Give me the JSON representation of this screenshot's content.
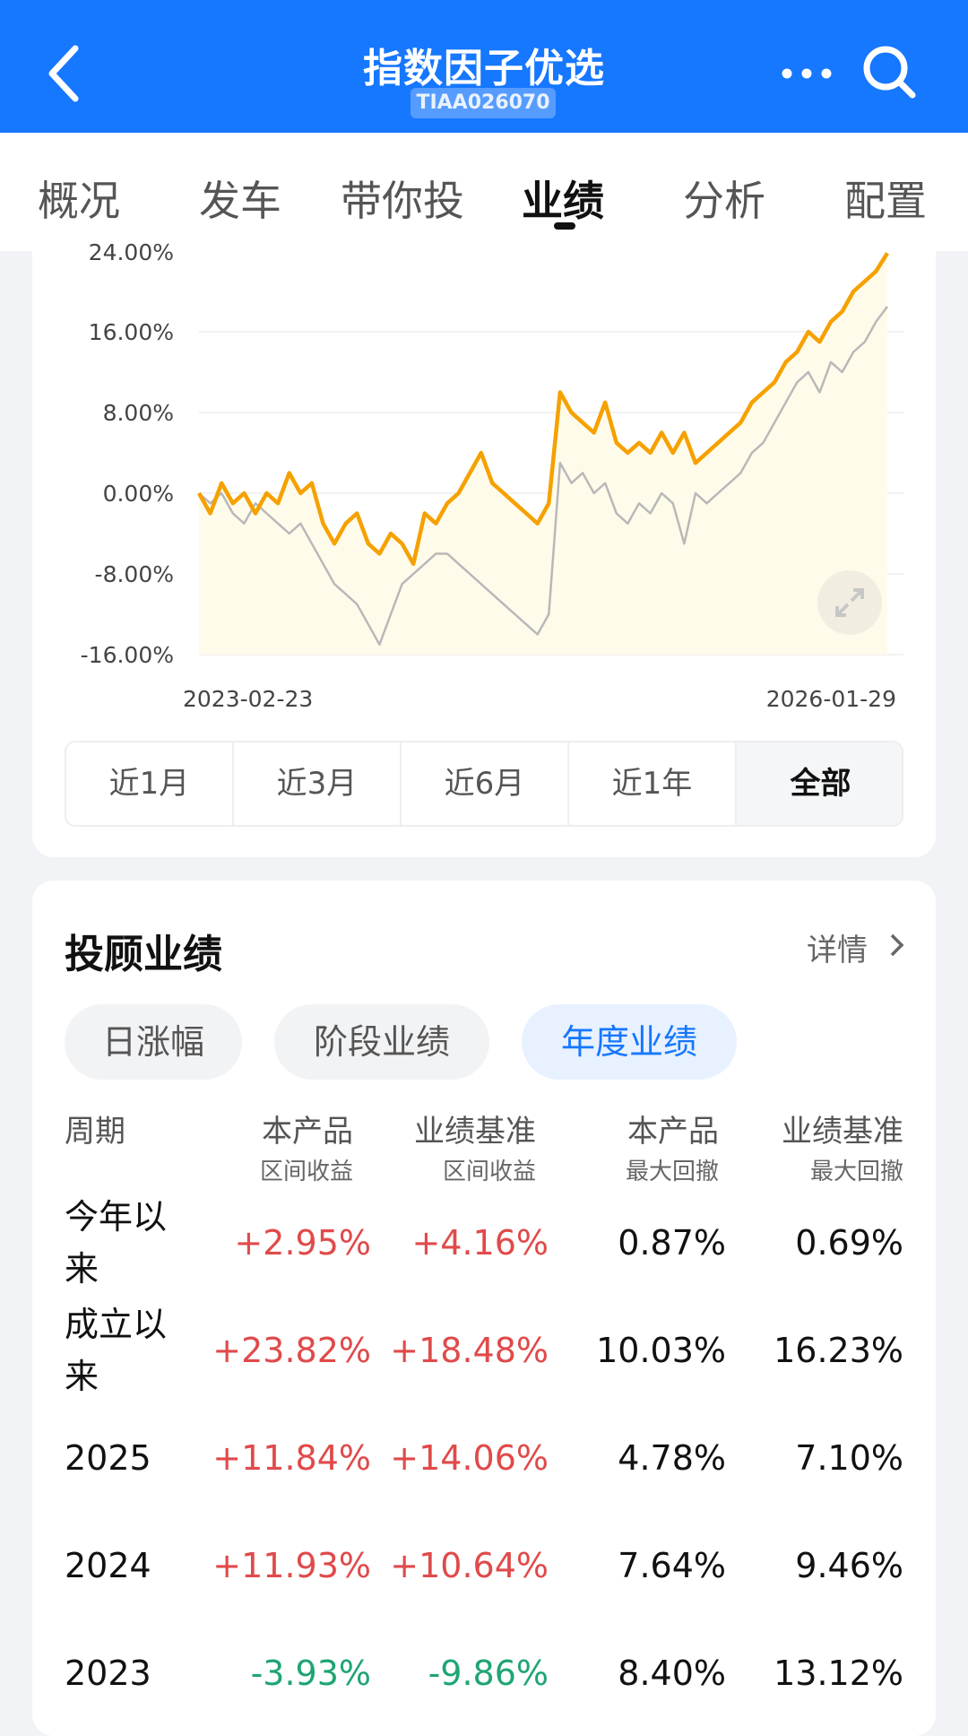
{
  "header": {
    "title": "指数因子优选",
    "code": "TIAA026070"
  },
  "tabs": [
    "概况",
    "发车",
    "带你投",
    "业绩",
    "分析",
    "配置"
  ],
  "active_tab": "业绩",
  "chart_data": {
    "type": "line",
    "x_start": "2023-02-23",
    "x_end": "2026-01-29",
    "y_ticks": [
      "24.00%",
      "16.00%",
      "8.00%",
      "0.00%",
      "-8.00%",
      "-16.00%"
    ],
    "ylim": [
      -16,
      24
    ],
    "series": [
      {
        "color": "#f5a100",
        "values": [
          0,
          -2,
          1,
          -1,
          0,
          -2,
          0,
          -1,
          2,
          0,
          1,
          -3,
          -5,
          -3,
          -2,
          -5,
          -6,
          -4,
          -5,
          -7,
          -2,
          -3,
          -1,
          0,
          2,
          4,
          1,
          0,
          -1,
          -2,
          -3,
          -1,
          10,
          8,
          7,
          6,
          9,
          5,
          4,
          5,
          4,
          6,
          4,
          6,
          3,
          4,
          5,
          6,
          7,
          9,
          10,
          11,
          13,
          14,
          16,
          15,
          17,
          18,
          20,
          21,
          22,
          23.8
        ]
      },
      {
        "color": "#b8b8b8",
        "values": [
          0,
          -1,
          0,
          -2,
          -3,
          -1,
          -2,
          -3,
          -4,
          -3,
          -5,
          -7,
          -9,
          -10,
          -11,
          -13,
          -15,
          -12,
          -9,
          -8,
          -7,
          -6,
          -6,
          -7,
          -8,
          -9,
          -10,
          -11,
          -12,
          -13,
          -14,
          -12,
          3,
          1,
          2,
          0,
          1,
          -2,
          -3,
          -1,
          -2,
          0,
          -1,
          -5,
          0,
          -1,
          0,
          1,
          2,
          4,
          5,
          7,
          9,
          11,
          12,
          10,
          13,
          12,
          14,
          15,
          17,
          18.5
        ]
      }
    ]
  },
  "periods": [
    "近1月",
    "近3月",
    "近6月",
    "近1年",
    "全部"
  ],
  "active_period": "全部",
  "performance": {
    "title": "投顾业绩",
    "detail_label": "详情",
    "subtabs": [
      "日涨幅",
      "阶段业绩",
      "年度业绩"
    ],
    "active_subtab": "年度业绩",
    "columns": [
      {
        "main": "周期",
        "sub": ""
      },
      {
        "main": "本产品",
        "sub": "区间收益"
      },
      {
        "main": "业绩基准",
        "sub": "区间收益"
      },
      {
        "main": "本产品",
        "sub": "最大回撤"
      },
      {
        "main": "业绩基准",
        "sub": "最大回撤"
      }
    ],
    "rows": [
      {
        "period": "今年以来",
        "product_return": "+2.95%",
        "benchmark_return": "+4.16%",
        "product_drawdown": "0.87%",
        "benchmark_drawdown": "0.69%",
        "trend": "up"
      },
      {
        "period": "成立以来",
        "product_return": "+23.82%",
        "benchmark_return": "+18.48%",
        "product_drawdown": "10.03%",
        "benchmark_drawdown": "16.23%",
        "trend": "up"
      },
      {
        "period": "2025",
        "product_return": "+11.84%",
        "benchmark_return": "+14.06%",
        "product_drawdown": "4.78%",
        "benchmark_drawdown": "7.10%",
        "trend": "up"
      },
      {
        "period": "2024",
        "product_return": "+11.93%",
        "benchmark_return": "+10.64%",
        "product_drawdown": "7.64%",
        "benchmark_drawdown": "9.46%",
        "trend": "up"
      },
      {
        "period": "2023",
        "product_return": "-3.93%",
        "benchmark_return": "-9.86%",
        "product_drawdown": "8.40%",
        "benchmark_drawdown": "13.12%",
        "trend": "down"
      }
    ]
  }
}
